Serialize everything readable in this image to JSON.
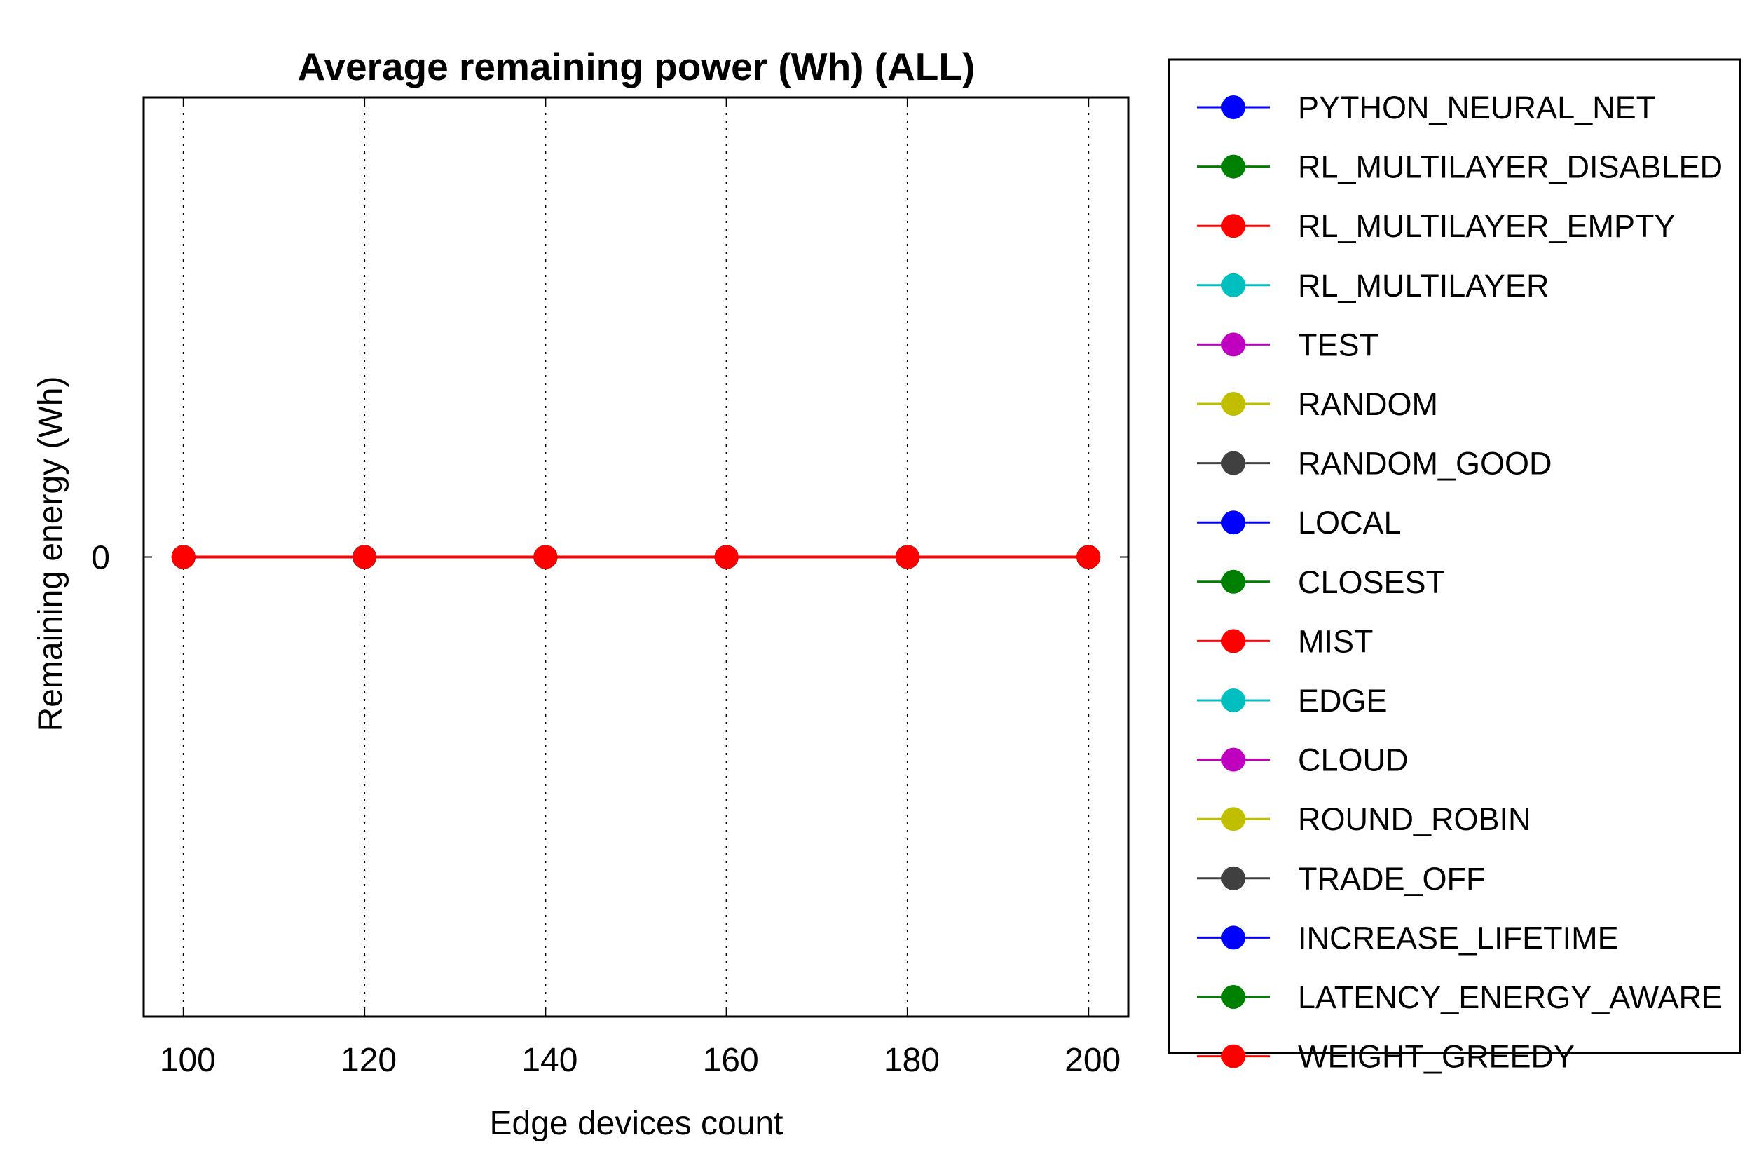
{
  "chart_data": {
    "type": "line",
    "title": "Average remaining power (Wh) (ALL)",
    "xlabel": "Edge devices count",
    "ylabel": "Remaining energy (Wh)",
    "x": [
      100,
      120,
      140,
      160,
      180,
      200
    ],
    "xticks": [
      "100",
      "120",
      "140",
      "160",
      "180",
      "200"
    ],
    "xlim": [
      95.6,
      204.4
    ],
    "yticks": [
      "0"
    ],
    "ylim": [
      -1,
      1
    ],
    "grid": "x-dotted",
    "legend_position": "right, outside plot",
    "series": [
      {
        "name": "PYTHON_NEURAL_NET",
        "color": "#0000ff",
        "values": [
          0,
          0,
          0,
          0,
          0,
          0
        ]
      },
      {
        "name": "RL_MULTILAYER_DISABLED",
        "color": "#008000",
        "values": [
          0,
          0,
          0,
          0,
          0,
          0
        ]
      },
      {
        "name": "RL_MULTILAYER_EMPTY",
        "color": "#ff0000",
        "values": [
          0,
          0,
          0,
          0,
          0,
          0
        ]
      },
      {
        "name": "RL_MULTILAYER",
        "color": "#00bfbf",
        "values": [
          0,
          0,
          0,
          0,
          0,
          0
        ]
      },
      {
        "name": "TEST",
        "color": "#bf00bf",
        "values": [
          0,
          0,
          0,
          0,
          0,
          0
        ]
      },
      {
        "name": "RANDOM",
        "color": "#bfbf00",
        "values": [
          0,
          0,
          0,
          0,
          0,
          0
        ]
      },
      {
        "name": "RANDOM_GOOD",
        "color": "#404040",
        "values": [
          0,
          0,
          0,
          0,
          0,
          0
        ]
      },
      {
        "name": "LOCAL",
        "color": "#0000ff",
        "values": [
          0,
          0,
          0,
          0,
          0,
          0
        ]
      },
      {
        "name": "CLOSEST",
        "color": "#008000",
        "values": [
          0,
          0,
          0,
          0,
          0,
          0
        ]
      },
      {
        "name": "MIST",
        "color": "#ff0000",
        "values": [
          0,
          0,
          0,
          0,
          0,
          0
        ]
      },
      {
        "name": "EDGE",
        "color": "#00bfbf",
        "values": [
          0,
          0,
          0,
          0,
          0,
          0
        ]
      },
      {
        "name": "CLOUD",
        "color": "#bf00bf",
        "values": [
          0,
          0,
          0,
          0,
          0,
          0
        ]
      },
      {
        "name": "ROUND_ROBIN",
        "color": "#bfbf00",
        "values": [
          0,
          0,
          0,
          0,
          0,
          0
        ]
      },
      {
        "name": "TRADE_OFF",
        "color": "#404040",
        "values": [
          0,
          0,
          0,
          0,
          0,
          0
        ]
      },
      {
        "name": "INCREASE_LIFETIME",
        "color": "#0000ff",
        "values": [
          0,
          0,
          0,
          0,
          0,
          0
        ]
      },
      {
        "name": "LATENCY_ENERGY_AWARE",
        "color": "#008000",
        "values": [
          0,
          0,
          0,
          0,
          0,
          0
        ]
      },
      {
        "name": "WEIGHT_GREEDY",
        "color": "#ff0000",
        "values": [
          0,
          0,
          0,
          0,
          0,
          0
        ]
      }
    ]
  }
}
